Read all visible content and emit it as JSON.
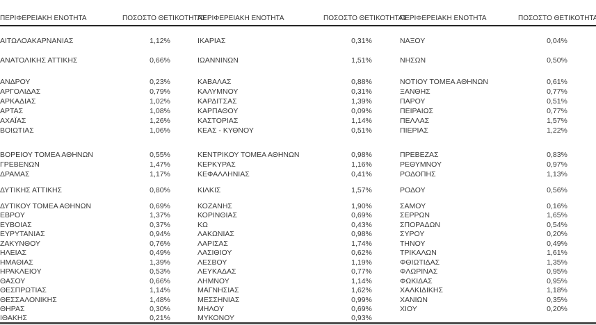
{
  "colors": {
    "background": "#ffffff",
    "text": "#3a3a3a",
    "header_rule": "#262626",
    "bottom_rule": "#4d4d4d"
  },
  "table": {
    "column_groups": 3,
    "header": {
      "region": "ΠΕΡΙΦΕΡΕΙΑΚΗ ΕΝΟΤΗΤΑ",
      "positivity": "ΠΟΣΟΣΤΟ ΘΕΤΙΚΟΤΗΤΑΣ"
    },
    "rows": [
      {
        "h": 15,
        "cells": null
      },
      {
        "h": 14,
        "cells": [
          [
            "ΑΙΤΩΛΟΑΚΑΡΝΑΝΙΑΣ",
            "1,12%"
          ],
          [
            "ΙΚΑΡΙΑΣ",
            "0,31%"
          ],
          [
            "ΝΑΞΟΥ",
            "0,04%"
          ]
        ]
      },
      {
        "h": 14,
        "cells": null
      },
      {
        "h": 14,
        "cells": [
          [
            "ΑΝΑΤΟΛΙΚΗΣ ΑΤΤΙΚΗΣ",
            "0,66%"
          ],
          [
            "ΙΩΑΝΝΙΝΩΝ",
            "1,51%"
          ],
          [
            "ΝΗΣΩΝ",
            "0,50%"
          ]
        ]
      },
      {
        "h": 17,
        "cells": null
      },
      {
        "h": 14,
        "cells": [
          [
            "ΑΝΔΡΟΥ",
            "0,23%"
          ],
          [
            "ΚΑΒΑΛΑΣ",
            "0,88%"
          ],
          [
            "ΝΟΤΙΟΥ ΤΟΜΕΑ ΑΘΗΝΩΝ",
            "0,61%"
          ]
        ]
      },
      {
        "h": 14,
        "cells": [
          [
            "ΑΡΓΟΛΙΔΑΣ",
            "0,79%"
          ],
          [
            "ΚΑΛΥΜΝΟΥ",
            "0,31%"
          ],
          [
            "ΞΑΝΘΗΣ",
            "0,77%"
          ]
        ]
      },
      {
        "h": 14,
        "cells": [
          [
            "ΑΡΚΑΔΙΑΣ",
            "1,02%"
          ],
          [
            "ΚΑΡΔΙΤΣΑΣ",
            "1,39%"
          ],
          [
            "ΠΑΡΟΥ",
            "0,51%"
          ]
        ]
      },
      {
        "h": 14,
        "cells": [
          [
            "ΑΡΤΑΣ",
            "1,08%"
          ],
          [
            "ΚΑΡΠΑΘΟΥ",
            "0,09%"
          ],
          [
            "ΠΕΙΡΑΙΩΣ",
            "0,77%"
          ]
        ]
      },
      {
        "h": 14,
        "cells": [
          [
            "ΑΧΑΪΑΣ",
            "1,26%"
          ],
          [
            "ΚΑΣΤΟΡΙΑΣ",
            "1,14%"
          ],
          [
            "ΠΕΛΛΑΣ",
            "1,57%"
          ]
        ]
      },
      {
        "h": 14,
        "cells": [
          [
            "ΒΟΙΩΤΙΑΣ",
            "1,06%"
          ],
          [
            "ΚΕΑΣ - ΚΥΘΝΟΥ",
            "0,51%"
          ],
          [
            "ΠΙΕΡΙΑΣ",
            "1,22%"
          ]
        ]
      },
      {
        "h": 21,
        "cells": null
      },
      {
        "h": 14,
        "cells": [
          [
            "ΒΟΡΕΙΟΥ ΤΟΜΕΑ ΑΘΗΝΩΝ",
            "0,55%"
          ],
          [
            "ΚΕΝΤΡΙΚΟΥ ΤΟΜΕΑ ΑΘΗΝΩΝ",
            "0,98%"
          ],
          [
            "ΠΡΕΒΕΖΑΣ",
            "0,83%"
          ]
        ]
      },
      {
        "h": 14,
        "cells": [
          [
            "ΓΡΕΒΕΝΩΝ",
            "1,47%"
          ],
          [
            "ΚΕΡΚΥΡΑΣ",
            "1,16%"
          ],
          [
            "ΡΕΘΥΜΝΟΥ",
            "0,97%"
          ]
        ]
      },
      {
        "h": 14,
        "cells": [
          [
            "ΔΡΑΜΑΣ",
            "1,17%"
          ],
          [
            "ΚΕΦΑΛΛΗΝΙΑΣ",
            "0,41%"
          ],
          [
            "ΡΟΔΟΠΗΣ",
            "1,13%"
          ]
        ]
      },
      {
        "h": 9,
        "cells": null
      },
      {
        "h": 14,
        "cells": [
          [
            "ΔΥΤΙΚΗΣ ΑΤΤΙΚΗΣ",
            "0,80%"
          ],
          [
            "ΚΙΛΚΙΣ",
            "1,57%"
          ],
          [
            "ΡΟΔΟΥ",
            "0,56%"
          ]
        ]
      },
      {
        "h": 9,
        "cells": null
      },
      {
        "h": 13.5,
        "cells": [
          [
            "ΔΥΤΙΚΟΥ ΤΟΜΕΑ ΑΘΗΝΩΝ",
            "0,69%"
          ],
          [
            "ΚΟΖΑΝΗΣ",
            "1,90%"
          ],
          [
            "ΣΑΜΟΥ",
            "0,16%"
          ]
        ]
      },
      {
        "h": 13.5,
        "cells": [
          [
            "ΕΒΡΟΥ",
            "1,37%"
          ],
          [
            "ΚΟΡΙΝΘΙΑΣ",
            "0,69%"
          ],
          [
            "ΣΕΡΡΩΝ",
            "1,65%"
          ]
        ]
      },
      {
        "h": 13.5,
        "cells": [
          [
            "ΕΥΒΟΙΑΣ",
            "0,37%"
          ],
          [
            "ΚΩ",
            "0,43%"
          ],
          [
            "ΣΠΟΡΑΔΩΝ",
            "0,54%"
          ]
        ]
      },
      {
        "h": 13.5,
        "cells": [
          [
            "ΕΥΡΥΤΑΝΙΑΣ",
            "0,94%"
          ],
          [
            "ΛΑΚΩΝΙΑΣ",
            "0,98%"
          ],
          [
            "ΣΥΡΟΥ",
            "0,20%"
          ]
        ]
      },
      {
        "h": 13.5,
        "cells": [
          [
            "ΖΑΚΥΝΘΟΥ",
            "0,76%"
          ],
          [
            "ΛΑΡΙΣΑΣ",
            "1,74%"
          ],
          [
            "ΤΗΝΟΥ",
            "0,49%"
          ]
        ]
      },
      {
        "h": 13.5,
        "cells": [
          [
            "ΗΛΕΙΑΣ",
            "0,49%"
          ],
          [
            "ΛΑΣΙΘΙΟΥ",
            "0,62%"
          ],
          [
            "ΤΡΙΚΑΛΩΝ",
            "1,61%"
          ]
        ]
      },
      {
        "h": 13.5,
        "cells": [
          [
            "ΗΜΑΘΙΑΣ",
            "1,39%"
          ],
          [
            "ΛΕΣΒΟΥ",
            "1,19%"
          ],
          [
            "ΦΘΙΩΤΙΔΑΣ",
            "1,35%"
          ]
        ]
      },
      {
        "h": 13.5,
        "cells": [
          [
            "ΗΡΑΚΛΕΙΟΥ",
            "0,53%"
          ],
          [
            "ΛΕΥΚΑΔΑΣ",
            "0,77%"
          ],
          [
            "ΦΛΩΡΙΝΑΣ",
            "0,95%"
          ]
        ]
      },
      {
        "h": 13.5,
        "cells": [
          [
            "ΘΑΣΟΥ",
            "0,66%"
          ],
          [
            "ΛΗΜΝΟΥ",
            "1,14%"
          ],
          [
            "ΦΩΚΙΔΑΣ",
            "0,95%"
          ]
        ]
      },
      {
        "h": 13.5,
        "cells": [
          [
            "ΘΕΣΠΡΩΤΙΑΣ",
            "1,14%"
          ],
          [
            "ΜΑΓΝΗΣΙΑΣ",
            "1,62%"
          ],
          [
            "ΧΑΛΚΙΔΙΚΗΣ",
            "1,18%"
          ]
        ]
      },
      {
        "h": 13.5,
        "cells": [
          [
            "ΘΕΣΣΑΛΟΝΙΚΗΣ",
            "1,48%"
          ],
          [
            "ΜΕΣΣΗΝΙΑΣ",
            "0,99%"
          ],
          [
            "ΧΑΝΙΩΝ",
            "0,35%"
          ]
        ]
      },
      {
        "h": 13.5,
        "cells": [
          [
            "ΘΗΡΑΣ",
            "0,30%"
          ],
          [
            "ΜΗΛΟΥ",
            "0,69%"
          ],
          [
            "ΧΙΟΥ",
            "0,20%"
          ]
        ]
      },
      {
        "h": 13.5,
        "cells": [
          [
            "ΙΘΑΚΗΣ",
            "0,21%"
          ],
          [
            "ΜΥΚΟΝΟΥ",
            "0,93%"
          ],
          null
        ]
      }
    ]
  }
}
